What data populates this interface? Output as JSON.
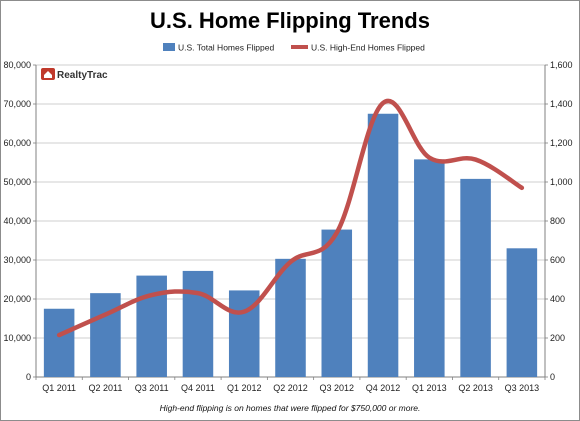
{
  "chart_data": {
    "type": "bar",
    "title": "U.S. Home Flipping Trends",
    "categories": [
      "Q1 2011",
      "Q2 2011",
      "Q3 2011",
      "Q4 2011",
      "Q1 2012",
      "Q2 2012",
      "Q3 2012",
      "Q4 2012",
      "Q1 2013",
      "Q2 2013",
      "Q3 2013"
    ],
    "series": [
      {
        "name": "U.S. Total Homes Flipped",
        "type": "bar",
        "axis": "left",
        "color": "#4f81bd",
        "values": [
          17500,
          21500,
          26000,
          27200,
          22200,
          30300,
          37800,
          67500,
          55800,
          50800,
          33000
        ]
      },
      {
        "name": "U.S. High-End Homes Flipped",
        "type": "line",
        "axis": "right",
        "color": "#c0504d",
        "values": [
          215,
          320,
          420,
          430,
          335,
          590,
          740,
          1405,
          1125,
          1115,
          970
        ]
      }
    ],
    "y_left": {
      "min": 0,
      "max": 80000,
      "step": 10000
    },
    "y_right": {
      "min": 0,
      "max": 1600,
      "step": 200
    },
    "legend_position": "top",
    "grid": true,
    "footnote": "High-end flipping is on homes that were flipped for $750,000 or more.",
    "logo": {
      "text": "RealtyTrac"
    }
  }
}
